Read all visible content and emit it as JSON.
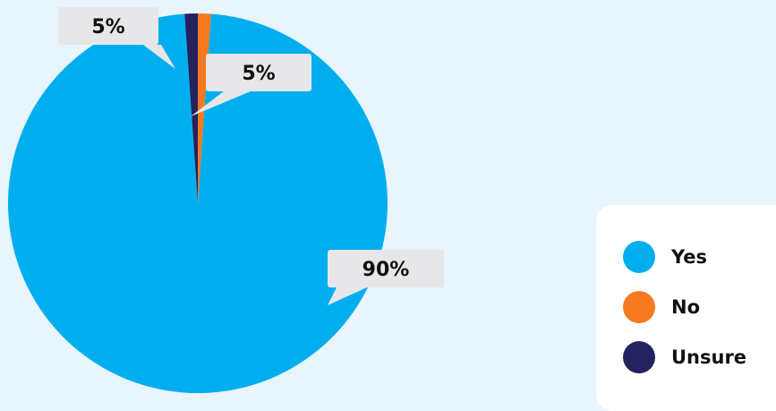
{
  "chart_data": {
    "type": "pie",
    "slices": [
      {
        "name": "Yes",
        "value": 90,
        "label": "90%",
        "color": "#00aeef"
      },
      {
        "name": "No",
        "value": 5,
        "label": "5%",
        "color": "#f47920"
      },
      {
        "name": "Unsure",
        "value": 5,
        "label": "5%",
        "color": "#23225e"
      }
    ],
    "legend_position": "bottom-right"
  },
  "legend": {
    "items": [
      {
        "label": "Yes",
        "color": "#00aeef"
      },
      {
        "label": "No",
        "color": "#f47920"
      },
      {
        "label": "Unsure",
        "color": "#23225e"
      }
    ]
  },
  "colors": {
    "background": "#e8f5fc",
    "callout": "#e7e7e9",
    "legend_panel": "#ffffff"
  }
}
